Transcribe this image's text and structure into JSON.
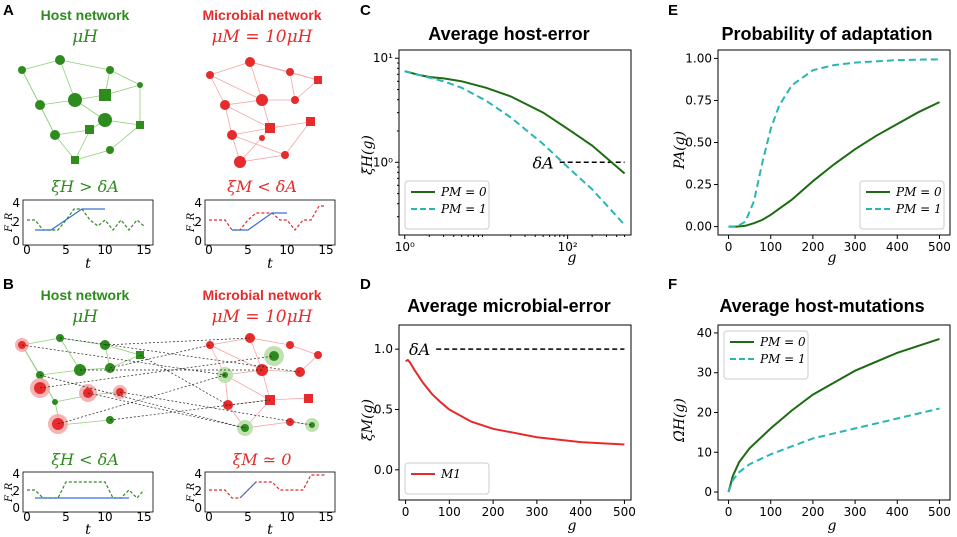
{
  "colors": {
    "green": "#2e8b1e",
    "red": "#e52b2b",
    "teal": "#2ab5b5",
    "darkgreen": "#1c6b12",
    "blue": "#3a6fd8"
  },
  "panels": {
    "A": {
      "letter": "A",
      "host_title": "Host network",
      "host_rate": "μH",
      "micro_title": "Microbial network",
      "micro_rate": "μM = 10μH",
      "host_cond": "ξH > δA",
      "micro_cond": "ξM < δA",
      "ylabel": "F, R",
      "xlabel": "t",
      "yticks": [
        "0",
        "2",
        "4"
      ],
      "xticks": [
        "0",
        "5",
        "10",
        "15"
      ]
    },
    "B": {
      "letter": "B",
      "host_title": "Host network",
      "host_rate": "μH",
      "micro_title": "Microbial network",
      "micro_rate": "μM = 10μH",
      "host_cond": "ξH < δA",
      "micro_cond": "ξM ≃ 0",
      "ylabel": "F, R",
      "xlabel": "t",
      "yticks": [
        "0",
        "2",
        "4"
      ],
      "xticks": [
        "0",
        "5",
        "10",
        "15"
      ]
    },
    "C": {
      "letter": "C",
      "ylabel": "ξ̄H(g)",
      "xlabel": "g",
      "annotation": "δA"
    },
    "D": {
      "letter": "D",
      "ylabel": "ξ̄M(g)",
      "xlabel": "g",
      "annotation": "δA"
    },
    "E": {
      "letter": "E",
      "ylabel": "PA(g)",
      "xlabel": "g"
    },
    "F": {
      "letter": "F",
      "ylabel": "Ω̄H(g)",
      "xlabel": "g"
    }
  },
  "chart_data": [
    {
      "id": "C",
      "type": "line",
      "title": "Average host-error",
      "scale": "log-log",
      "xlabel": "g",
      "ylabel": "ξ̄H(g)",
      "xlim": [
        0.85,
        600
      ],
      "ylim": [
        0.2,
        12
      ],
      "xticks": [
        {
          "v": 1,
          "label": "10⁰"
        },
        {
          "v": 100,
          "label": "10²"
        }
      ],
      "yticks": [
        {
          "v": 1,
          "label": "10⁰"
        },
        {
          "v": 10,
          "label": "10¹"
        }
      ],
      "threshold": {
        "label": "δA",
        "y": 1.0,
        "x_from": 80,
        "x_to": 500
      },
      "legend": "bottom-left",
      "series": [
        {
          "name": "PM = 0",
          "color": "#1c6b12",
          "dash": false,
          "x": [
            1,
            1.5,
            2,
            3,
            5,
            10,
            20,
            50,
            100,
            200,
            500
          ],
          "y": [
            7.5,
            6.9,
            6.6,
            6.4,
            6.0,
            5.2,
            4.3,
            3.0,
            2.1,
            1.45,
            0.78
          ]
        },
        {
          "name": "PM = 1",
          "color": "#2ab5b5",
          "dash": true,
          "x": [
            1,
            1.5,
            2,
            3,
            5,
            10,
            20,
            50,
            100,
            200,
            500
          ],
          "y": [
            7.5,
            6.9,
            6.5,
            6.0,
            5.2,
            3.9,
            2.7,
            1.5,
            0.9,
            0.55,
            0.25
          ]
        }
      ]
    },
    {
      "id": "D",
      "type": "line",
      "title": "Average microbial-error",
      "xlabel": "g",
      "ylabel": "ξ̄M(g)",
      "xlim": [
        -15,
        515
      ],
      "ylim": [
        -0.25,
        1.2
      ],
      "xticks": [
        0,
        100,
        200,
        300,
        400,
        500
      ],
      "yticks": [
        0.0,
        0.5,
        1.0
      ],
      "yticklabels": [
        "0.0",
        "0.5",
        "1.0"
      ],
      "threshold": {
        "label": "δA",
        "y": 1.0,
        "x_from": 70,
        "x_to": 500
      },
      "legend": "bottom-left",
      "series": [
        {
          "name": "M1",
          "color": "#e52b2b",
          "dash": false,
          "x": [
            0,
            5,
            10,
            20,
            40,
            60,
            80,
            100,
            150,
            200,
            300,
            400,
            500
          ],
          "y": [
            0.9,
            0.91,
            0.89,
            0.83,
            0.72,
            0.63,
            0.56,
            0.5,
            0.4,
            0.34,
            0.27,
            0.23,
            0.21
          ]
        }
      ]
    },
    {
      "id": "E",
      "type": "line",
      "title": "Probability of adaptation",
      "xlabel": "g",
      "ylabel": "PA(g)",
      "xlim": [
        -25,
        525
      ],
      "ylim": [
        -0.05,
        1.05
      ],
      "xticks": [
        0,
        100,
        200,
        300,
        400,
        500
      ],
      "yticks": [
        0.0,
        0.25,
        0.5,
        0.75,
        1.0
      ],
      "yticklabels": [
        "0.00",
        "0.25",
        "0.50",
        "0.75",
        "1.00"
      ],
      "legend": "bottom-right",
      "series": [
        {
          "name": "PM = 0",
          "color": "#1c6b12",
          "dash": false,
          "x": [
            0,
            20,
            40,
            60,
            80,
            100,
            150,
            200,
            250,
            300,
            350,
            400,
            450,
            500
          ],
          "y": [
            0,
            0,
            0.005,
            0.02,
            0.04,
            0.07,
            0.16,
            0.27,
            0.37,
            0.46,
            0.54,
            0.61,
            0.68,
            0.74
          ]
        },
        {
          "name": "PM = 1",
          "color": "#2ab5b5",
          "dash": true,
          "x": [
            0,
            20,
            40,
            60,
            80,
            100,
            120,
            150,
            200,
            250,
            300,
            400,
            500
          ],
          "y": [
            0,
            0,
            0.03,
            0.15,
            0.38,
            0.58,
            0.72,
            0.84,
            0.93,
            0.96,
            0.975,
            0.99,
            0.995
          ]
        }
      ]
    },
    {
      "id": "F",
      "type": "line",
      "title": "Average host-mutations",
      "xlabel": "g",
      "ylabel": "Ω̄H(g)",
      "xlim": [
        -25,
        525
      ],
      "ylim": [
        -2,
        42
      ],
      "xticks": [
        0,
        100,
        200,
        300,
        400,
        500
      ],
      "yticks": [
        0,
        10,
        20,
        30,
        40
      ],
      "yticklabels": [
        "0",
        "10",
        "20",
        "30",
        "40"
      ],
      "legend": "top-left",
      "series": [
        {
          "name": "PM = 0",
          "color": "#1c6b12",
          "dash": false,
          "x": [
            0,
            10,
            25,
            50,
            100,
            150,
            200,
            300,
            400,
            500
          ],
          "y": [
            0,
            4,
            7.5,
            11,
            16,
            20.5,
            24.5,
            30.5,
            35,
            38.5
          ]
        },
        {
          "name": "PM = 1",
          "color": "#2ab5b5",
          "dash": true,
          "x": [
            0,
            10,
            25,
            50,
            100,
            150,
            200,
            300,
            400,
            500
          ],
          "y": [
            0,
            3,
            5,
            7,
            9.5,
            11.5,
            13.5,
            16,
            18.5,
            21
          ]
        }
      ]
    }
  ]
}
